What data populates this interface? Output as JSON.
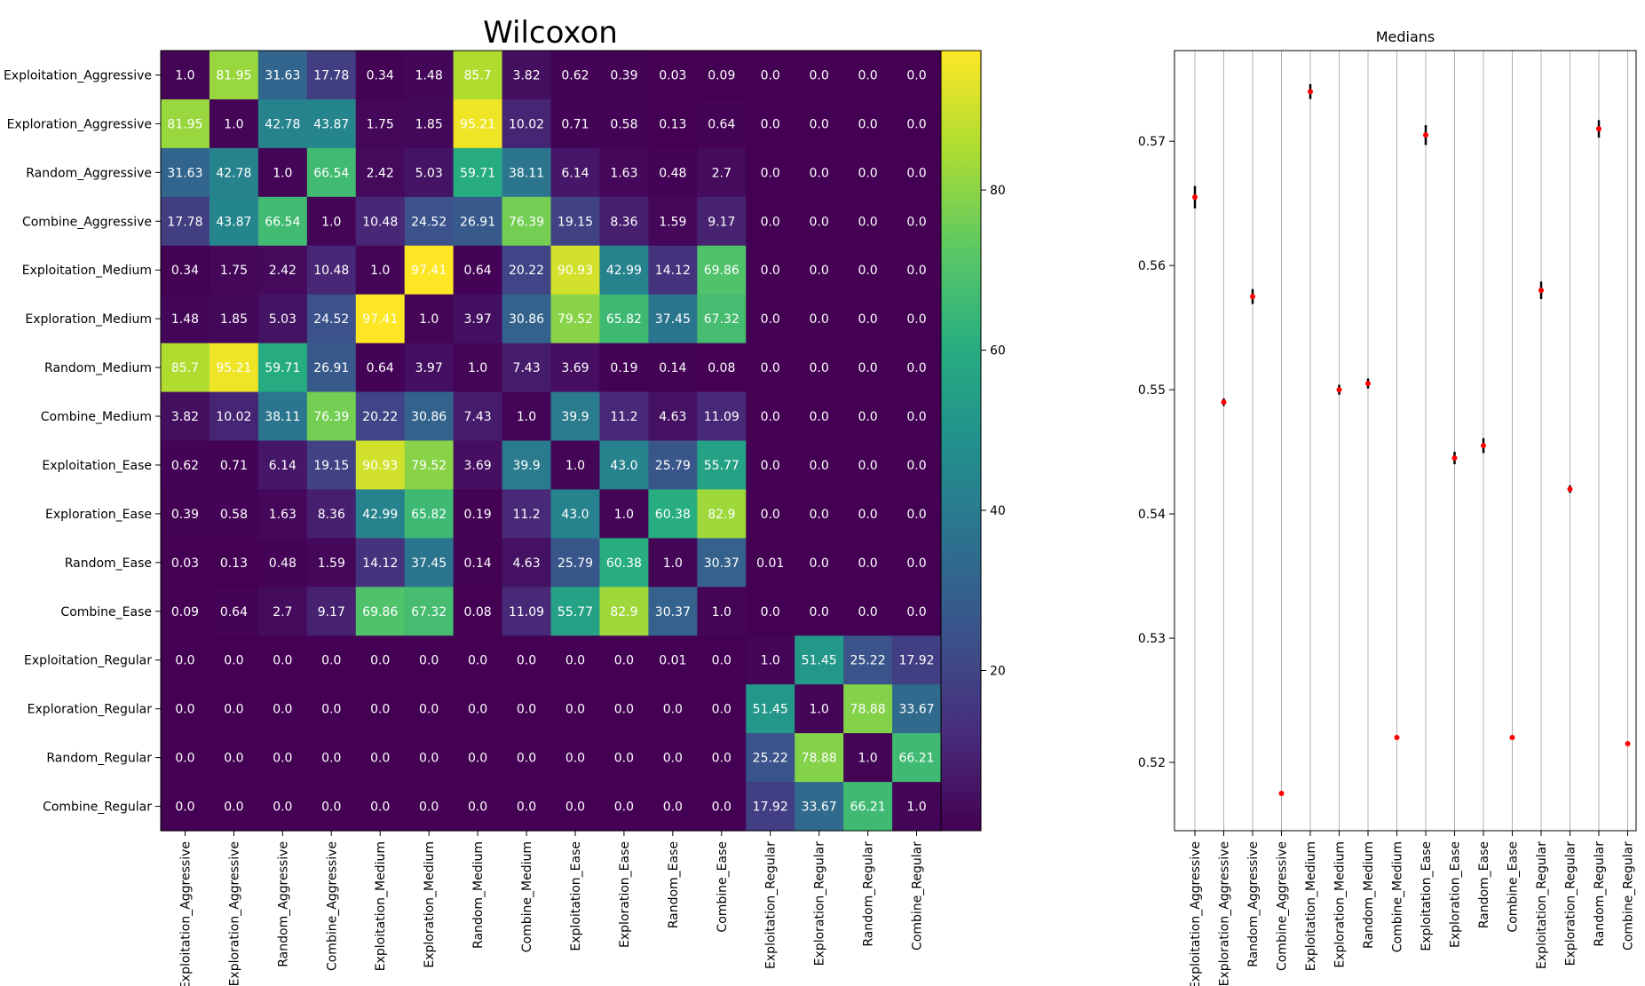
{
  "chart_data": [
    {
      "type": "heatmap",
      "title": "Wilcoxon",
      "labels": [
        "Exploitation_Aggressive",
        "Exploration_Aggressive",
        "Random_Aggressive",
        "Combine_Aggressive",
        "Exploitation_Medium",
        "Exploration_Medium",
        "Random_Medium",
        "Combine_Medium",
        "Exploitation_Ease",
        "Exploration_Ease",
        "Random_Ease",
        "Combine_Ease",
        "Exploitation_Regular",
        "Exploration_Regular",
        "Random_Regular",
        "Combine_Regular"
      ],
      "cell_text": [
        [
          "1.0",
          "81.95",
          "31.63",
          "17.78",
          "0.34",
          "1.48",
          "85.7",
          "3.82",
          "0.62",
          "0.39",
          "0.03",
          "0.09",
          "0.0",
          "0.0",
          "0.0",
          "0.0"
        ],
        [
          "81.95",
          "1.0",
          "42.78",
          "43.87",
          "1.75",
          "1.85",
          "95.21",
          "10.02",
          "0.71",
          "0.58",
          "0.13",
          "0.64",
          "0.0",
          "0.0",
          "0.0",
          "0.0"
        ],
        [
          "31.63",
          "42.78",
          "1.0",
          "66.54",
          "2.42",
          "5.03",
          "59.71",
          "38.11",
          "6.14",
          "1.63",
          "0.48",
          "2.7",
          "0.0",
          "0.0",
          "0.0",
          "0.0"
        ],
        [
          "17.78",
          "43.87",
          "66.54",
          "1.0",
          "10.48",
          "24.52",
          "26.91",
          "76.39",
          "19.15",
          "8.36",
          "1.59",
          "9.17",
          "0.0",
          "0.0",
          "0.0",
          "0.0"
        ],
        [
          "0.34",
          "1.75",
          "2.42",
          "10.48",
          "1.0",
          "97.41",
          "0.64",
          "20.22",
          "90.93",
          "42.99",
          "14.12",
          "69.86",
          "0.0",
          "0.0",
          "0.0",
          "0.0"
        ],
        [
          "1.48",
          "1.85",
          "5.03",
          "24.52",
          "97.41",
          "1.0",
          "3.97",
          "30.86",
          "79.52",
          "65.82",
          "37.45",
          "67.32",
          "0.0",
          "0.0",
          "0.0",
          "0.0"
        ],
        [
          "85.7",
          "95.21",
          "59.71",
          "26.91",
          "0.64",
          "3.97",
          "1.0",
          "7.43",
          "3.69",
          "0.19",
          "0.14",
          "0.08",
          "0.0",
          "0.0",
          "0.0",
          "0.0"
        ],
        [
          "3.82",
          "10.02",
          "38.11",
          "76.39",
          "20.22",
          "30.86",
          "7.43",
          "1.0",
          "39.9",
          "11.2",
          "4.63",
          "11.09",
          "0.0",
          "0.0",
          "0.0",
          "0.0"
        ],
        [
          "0.62",
          "0.71",
          "6.14",
          "19.15",
          "90.93",
          "79.52",
          "3.69",
          "39.9",
          "1.0",
          "43.0",
          "25.79",
          "55.77",
          "0.0",
          "0.0",
          "0.0",
          "0.0"
        ],
        [
          "0.39",
          "0.58",
          "1.63",
          "8.36",
          "42.99",
          "65.82",
          "0.19",
          "11.2",
          "43.0",
          "1.0",
          "60.38",
          "82.9",
          "0.0",
          "0.0",
          "0.0",
          "0.0"
        ],
        [
          "0.03",
          "0.13",
          "0.48",
          "1.59",
          "14.12",
          "37.45",
          "0.14",
          "4.63",
          "25.79",
          "60.38",
          "1.0",
          "30.37",
          "0.01",
          "0.0",
          "0.0",
          "0.0"
        ],
        [
          "0.09",
          "0.64",
          "2.7",
          "9.17",
          "69.86",
          "67.32",
          "0.08",
          "11.09",
          "55.77",
          "82.9",
          "30.37",
          "1.0",
          "0.0",
          "0.0",
          "0.0",
          "0.0"
        ],
        [
          "0.0",
          "0.0",
          "0.0",
          "0.0",
          "0.0",
          "0.0",
          "0.0",
          "0.0",
          "0.0",
          "0.0",
          "0.01",
          "0.0",
          "1.0",
          "51.45",
          "25.22",
          "17.92"
        ],
        [
          "0.0",
          "0.0",
          "0.0",
          "0.0",
          "0.0",
          "0.0",
          "0.0",
          "0.0",
          "0.0",
          "0.0",
          "0.0",
          "0.0",
          "51.45",
          "1.0",
          "78.88",
          "33.67"
        ],
        [
          "0.0",
          "0.0",
          "0.0",
          "0.0",
          "0.0",
          "0.0",
          "0.0",
          "0.0",
          "0.0",
          "0.0",
          "0.0",
          "0.0",
          "25.22",
          "78.88",
          "1.0",
          "66.21"
        ],
        [
          "0.0",
          "0.0",
          "0.0",
          "0.0",
          "0.0",
          "0.0",
          "0.0",
          "0.0",
          "0.0",
          "0.0",
          "0.0",
          "0.0",
          "17.92",
          "33.67",
          "66.21",
          "1.0"
        ]
      ],
      "color_scale": {
        "colormap": "viridis",
        "vmin": 0,
        "vmax": 97.41
      },
      "colorbar_ticks": [
        "20",
        "40",
        "60",
        "80"
      ]
    },
    {
      "type": "scatter",
      "title": "Medians",
      "categories": [
        "Exploitation_Aggressive",
        "Exploration_Aggressive",
        "Random_Aggressive",
        "Combine_Aggressive",
        "Exploitation_Medium",
        "Exploration_Medium",
        "Random_Medium",
        "Combine_Medium",
        "Exploitation_Ease",
        "Exploration_Ease",
        "Random_Ease",
        "Combine_Ease",
        "Exploitation_Regular",
        "Exploration_Regular",
        "Random_Regular",
        "Combine_Regular"
      ],
      "values": [
        0.5655,
        0.549,
        0.5575,
        0.5175,
        0.574,
        0.55,
        0.5505,
        0.522,
        0.5705,
        0.5445,
        0.5455,
        0.522,
        0.558,
        0.542,
        0.571,
        0.5215
      ],
      "errors": [
        0.0009,
        0.0003,
        0.0006,
        0.0,
        0.0006,
        0.0004,
        0.0004,
        0.0,
        0.0008,
        0.0005,
        0.0006,
        0.0,
        0.0007,
        0.0003,
        0.0007,
        0.0
      ],
      "ylim": [
        0.5145,
        0.5773
      ],
      "yticks": [
        "0.52",
        "0.53",
        "0.54",
        "0.55",
        "0.56",
        "0.57"
      ],
      "grid": "vertical",
      "marker_color": "#ff0000",
      "errorbar_color": "#000000"
    }
  ]
}
